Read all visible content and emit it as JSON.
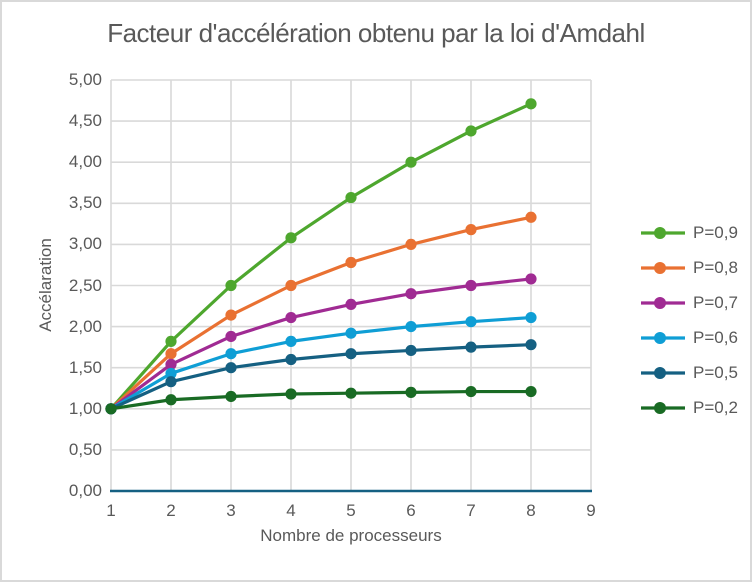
{
  "chart": {
    "title": "Facteur d'accélération obtenu par la loi d'Amdahl",
    "x_axis_title": "Nombre de processeurs",
    "y_axis_title": "Accélaration"
  },
  "chart_data": {
    "type": "line",
    "title": "Facteur d'accélération obtenu par la loi d'Amdahl",
    "xlabel": "Nombre de processeurs",
    "ylabel": "Accélaration",
    "x": [
      1,
      2,
      3,
      4,
      5,
      6,
      7,
      8
    ],
    "series": [
      {
        "name": "P=0,9",
        "color": "#4EA72E",
        "values": [
          1.0,
          1.82,
          2.5,
          3.08,
          3.57,
          4.0,
          4.38,
          4.71
        ]
      },
      {
        "name": "P=0,8",
        "color": "#E97132",
        "values": [
          1.0,
          1.67,
          2.14,
          2.5,
          2.78,
          3.0,
          3.18,
          3.33
        ]
      },
      {
        "name": "P=0,7",
        "color": "#A02B93",
        "values": [
          1.0,
          1.54,
          1.88,
          2.11,
          2.27,
          2.4,
          2.5,
          2.58
        ]
      },
      {
        "name": "P=0,6",
        "color": "#0F9ED5",
        "values": [
          1.0,
          1.43,
          1.67,
          1.82,
          1.92,
          2.0,
          2.06,
          2.11
        ]
      },
      {
        "name": "P=0,5",
        "color": "#156082",
        "values": [
          1.0,
          1.33,
          1.5,
          1.6,
          1.67,
          1.71,
          1.75,
          1.78
        ]
      },
      {
        "name": "P=0,2",
        "color": "#196B24",
        "values": [
          1.0,
          1.11,
          1.15,
          1.18,
          1.19,
          1.2,
          1.21,
          1.21
        ]
      }
    ],
    "xlim": [
      1,
      9
    ],
    "ylim": [
      0,
      5
    ],
    "x_ticks": [
      {
        "value": 1,
        "label": "1"
      },
      {
        "value": 2,
        "label": "2"
      },
      {
        "value": 3,
        "label": "3"
      },
      {
        "value": 4,
        "label": "4"
      },
      {
        "value": 5,
        "label": "5"
      },
      {
        "value": 6,
        "label": "6"
      },
      {
        "value": 7,
        "label": "7"
      },
      {
        "value": 8,
        "label": "8"
      },
      {
        "value": 9,
        "label": "9"
      }
    ],
    "y_ticks": [
      {
        "value": 0.0,
        "label": "0,00"
      },
      {
        "value": 0.5,
        "label": "0,50"
      },
      {
        "value": 1.0,
        "label": "1,00"
      },
      {
        "value": 1.5,
        "label": "1,50"
      },
      {
        "value": 2.0,
        "label": "2,00"
      },
      {
        "value": 2.5,
        "label": "2,50"
      },
      {
        "value": 3.0,
        "label": "3,00"
      },
      {
        "value": 3.5,
        "label": "3,50"
      },
      {
        "value": 4.0,
        "label": "4,00"
      },
      {
        "value": 4.5,
        "label": "4,50"
      },
      {
        "value": 5.0,
        "label": "5,00"
      }
    ],
    "grid": true,
    "legend_position": "right"
  },
  "style": {
    "text_color": "#595959",
    "grid_color": "#d9d9d9",
    "axis_line_color": "#156082",
    "frame_border_color": "#d9d9d9",
    "background": "#ffffff"
  }
}
